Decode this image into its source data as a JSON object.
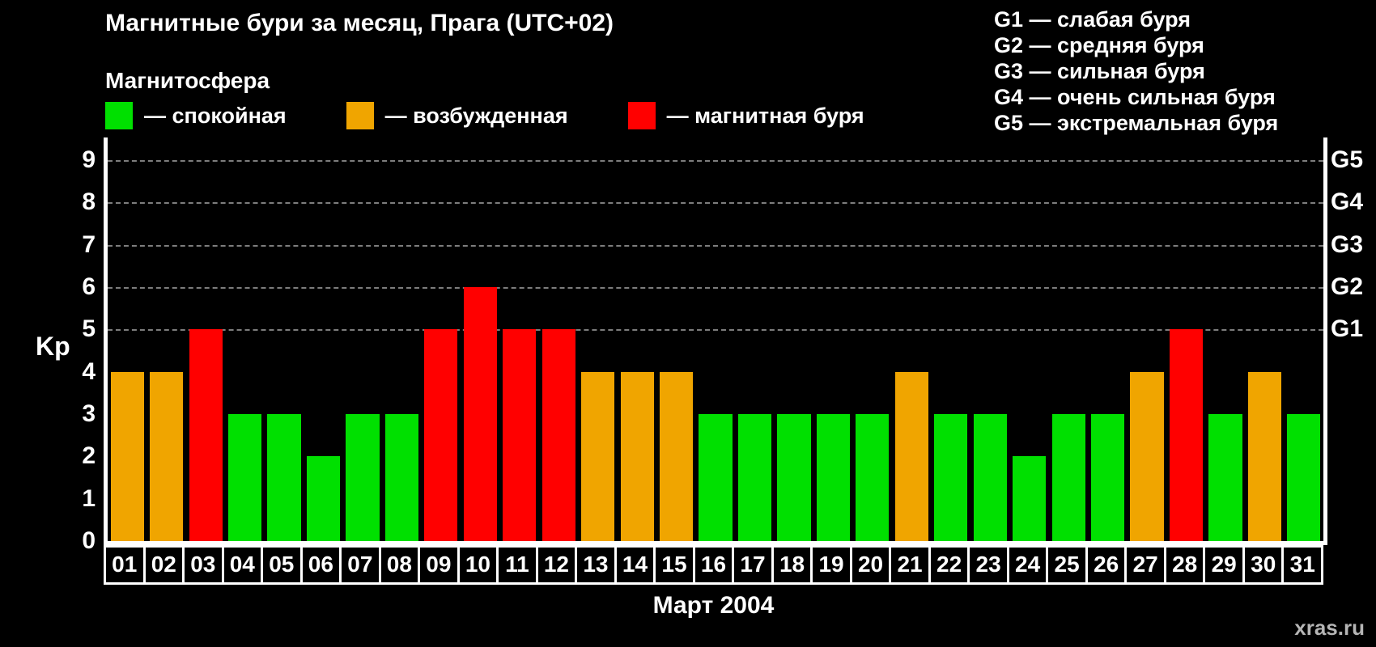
{
  "title": "Магнитные бури за месяц, Прага (UTC+02)",
  "legend": {
    "title": "Магнитосфера",
    "items": [
      {
        "label": "— спокойная",
        "color": "#00e000",
        "state": "quiet"
      },
      {
        "label": "— возбужденная",
        "color": "#f0a500",
        "state": "excited"
      },
      {
        "label": "— магнитная буря",
        "color": "#ff0000",
        "state": "storm"
      }
    ]
  },
  "g_legend": [
    {
      "label": "G1 — слабая буря"
    },
    {
      "label": "G2 — средняя буря"
    },
    {
      "label": "G3 — сильная буря"
    },
    {
      "label": "G4 — очень сильная буря"
    },
    {
      "label": "G5 — экстремальная буря"
    }
  ],
  "watermark": "xras.ru",
  "chart_data": {
    "type": "bar",
    "title": "Магнитные бури за месяц, Прага (UTC+02)",
    "xlabel": "Март 2004",
    "ylabel": "Kp",
    "ylim": [
      0,
      9
    ],
    "yticks": [
      0,
      1,
      2,
      3,
      4,
      5,
      6,
      7,
      8,
      9
    ],
    "grid": "dashed horizontal lines at Kp 5,6,7,8,9",
    "legend_position": "top-left",
    "right_axis_ticks": [
      {
        "value": 5,
        "label": "G1"
      },
      {
        "value": 6,
        "label": "G2"
      },
      {
        "value": 7,
        "label": "G3"
      },
      {
        "value": 8,
        "label": "G4"
      },
      {
        "value": 9,
        "label": "G5"
      }
    ],
    "categories": [
      "01",
      "02",
      "03",
      "04",
      "05",
      "06",
      "07",
      "08",
      "09",
      "10",
      "11",
      "12",
      "13",
      "14",
      "15",
      "16",
      "17",
      "18",
      "19",
      "20",
      "21",
      "22",
      "23",
      "24",
      "25",
      "26",
      "27",
      "28",
      "29",
      "30",
      "31"
    ],
    "values": [
      4,
      4,
      5,
      3,
      3,
      2,
      3,
      3,
      5,
      6,
      5,
      5,
      4,
      4,
      4,
      3,
      3,
      3,
      3,
      3,
      4,
      3,
      3,
      2,
      3,
      3,
      4,
      5,
      3,
      4,
      3
    ],
    "states": [
      "excited",
      "excited",
      "storm",
      "quiet",
      "quiet",
      "quiet",
      "quiet",
      "quiet",
      "storm",
      "storm",
      "storm",
      "storm",
      "excited",
      "excited",
      "excited",
      "quiet",
      "quiet",
      "quiet",
      "quiet",
      "quiet",
      "excited",
      "quiet",
      "quiet",
      "quiet",
      "quiet",
      "quiet",
      "excited",
      "storm",
      "quiet",
      "excited",
      "quiet"
    ],
    "colors_by_state": {
      "quiet": "#00e000",
      "excited": "#f0a500",
      "storm": "#ff0000"
    }
  }
}
